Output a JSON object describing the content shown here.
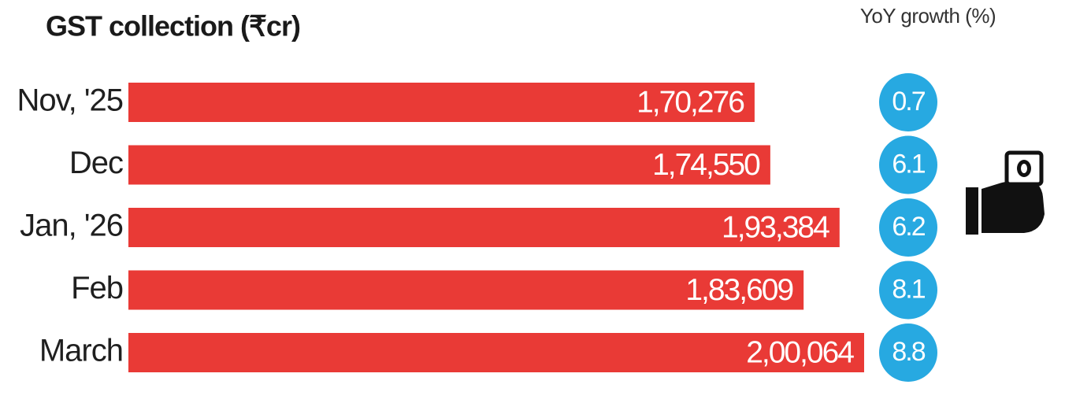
{
  "chart_data": {
    "type": "bar",
    "title": "GST collection (₹cr)",
    "categories": [
      "Nov, '25",
      "Dec",
      "Jan, '26",
      "Feb",
      "March"
    ],
    "values": [
      170276,
      174550,
      193384,
      183609,
      200064
    ],
    "value_labels": [
      "1,70,276",
      "1,74,550",
      "1,93,384",
      "1,83,609",
      "2,00,064"
    ],
    "color": "#e93a36",
    "growth": {
      "title": "YoY growth (%)",
      "values": [
        0.7,
        6.1,
        6.2,
        8.1,
        8.8
      ],
      "color": "#27a9e1"
    }
  }
}
